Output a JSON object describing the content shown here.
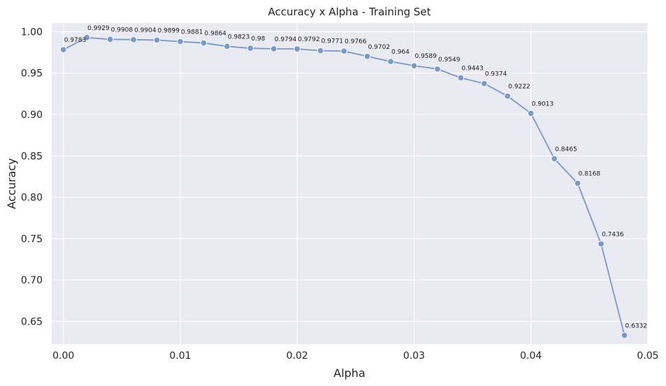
{
  "chart_data": {
    "type": "line",
    "title": "Accuracy x Alpha - Training Set",
    "xlabel": "Alpha",
    "ylabel": "Accuracy",
    "xlim": [
      -0.001,
      0.05
    ],
    "ylim": [
      0.6225,
      1.0105
    ],
    "xticks": [
      0.0,
      0.01,
      0.02,
      0.03,
      0.04,
      0.05
    ],
    "xtick_labels": [
      "0.00",
      "0.01",
      "0.02",
      "0.03",
      "0.04",
      "0.05"
    ],
    "yticks": [
      0.65,
      0.7,
      0.75,
      0.8,
      0.85,
      0.9,
      0.95,
      1.0
    ],
    "ytick_labels": [
      "0.65",
      "0.70",
      "0.75",
      "0.80",
      "0.85",
      "0.90",
      "0.95",
      "1.00"
    ],
    "grid": true,
    "marker": "circle",
    "colors": {
      "line": "#7799cc",
      "background": "#eaeaf2",
      "grid": "#ffffff"
    },
    "x": [
      0.0,
      0.002,
      0.004,
      0.006,
      0.008,
      0.01,
      0.012,
      0.014,
      0.016,
      0.018,
      0.02,
      0.022,
      0.024,
      0.026,
      0.028,
      0.03,
      0.032,
      0.034,
      0.036,
      0.038,
      0.04,
      0.042,
      0.044,
      0.046,
      0.048
    ],
    "y": [
      0.9783,
      0.9929,
      0.9908,
      0.9904,
      0.9899,
      0.9881,
      0.9864,
      0.9823,
      0.98,
      0.9794,
      0.9792,
      0.9771,
      0.9766,
      0.9702,
      0.964,
      0.9589,
      0.9549,
      0.9443,
      0.9374,
      0.9222,
      0.9013,
      0.8465,
      0.8168,
      0.7436,
      0.6332
    ],
    "data_labels": [
      "0.9783",
      "0.9929",
      "0.9908",
      "0.9904",
      "0.9899",
      "0.9881",
      "0.9864",
      "0.9823",
      "0.98",
      "0.9794",
      "0.9792",
      "0.9771",
      "0.9766",
      "0.9702",
      "0.964",
      "0.9589",
      "0.9549",
      "0.9443",
      "0.9374",
      "0.9222",
      "0.9013",
      "0.8465",
      "0.8168",
      "0.7436",
      "0.6332"
    ]
  }
}
